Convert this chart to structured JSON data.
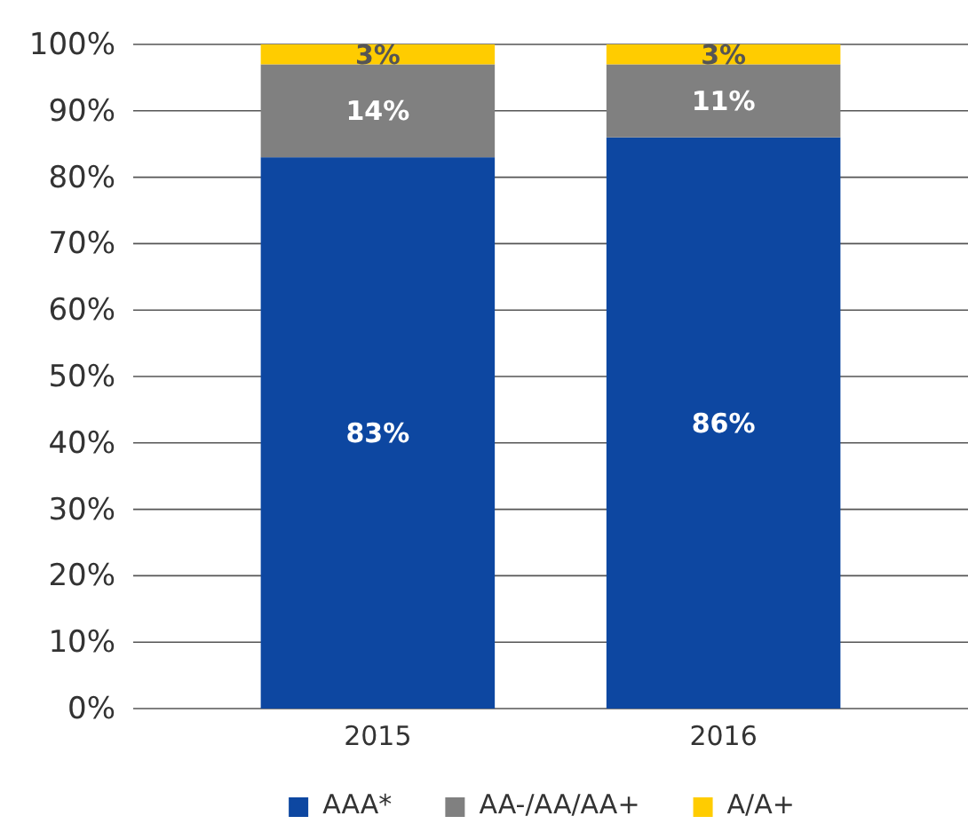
{
  "chart_data": {
    "type": "bar",
    "stacked": true,
    "categories": [
      "2015",
      "2016"
    ],
    "series": [
      {
        "name": "AAA*",
        "color": "#0d47a1",
        "values": [
          83,
          86
        ],
        "value_labels": [
          "83%",
          "86%"
        ]
      },
      {
        "name": "AA-/AA/AA+",
        "color": "#808080",
        "values": [
          14,
          11
        ],
        "value_labels": [
          "14%",
          "11%"
        ]
      },
      {
        "name": "A/A+",
        "color": "#ffcc00",
        "values": [
          3,
          3
        ],
        "value_labels": [
          "3%",
          "3%"
        ]
      }
    ],
    "ylim": [
      0,
      100
    ],
    "yticks": [
      {
        "value": 0,
        "label": "0%"
      },
      {
        "value": 10,
        "label": "10%"
      },
      {
        "value": 20,
        "label": "20%"
      },
      {
        "value": 30,
        "label": "30%"
      },
      {
        "value": 40,
        "label": "40%"
      },
      {
        "value": 50,
        "label": "50%"
      },
      {
        "value": 60,
        "label": "60%"
      },
      {
        "value": 70,
        "label": "70%"
      },
      {
        "value": 80,
        "label": "80%"
      },
      {
        "value": 90,
        "label": "90%"
      },
      {
        "value": 100,
        "label": "100%"
      }
    ],
    "grid": "y",
    "legend": "bottom"
  }
}
